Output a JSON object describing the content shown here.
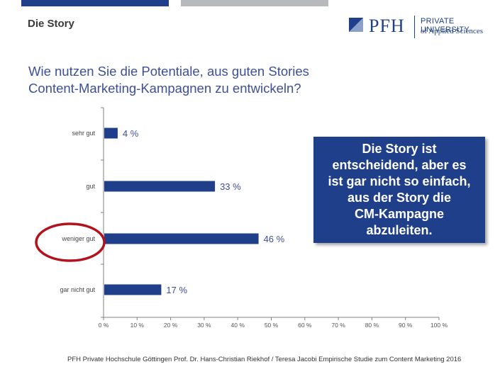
{
  "header": {
    "section_title": "Die Story",
    "logo": {
      "name": "PFH",
      "line1": "PRIVATE UNIVERSITY",
      "line2": "of Applied Sciences"
    }
  },
  "question": {
    "line1": "Wie nutzen Sie die Potentiale, aus guten Stories",
    "line2": "Content-Marketing-Kampagnen zu entwickeln?"
  },
  "chart_data": {
    "type": "bar",
    "orientation": "horizontal",
    "categories": [
      "sehr gut",
      "gut",
      "weniger gut",
      "gar nicht gut"
    ],
    "values": [
      4,
      33,
      46,
      17
    ],
    "value_labels": [
      "4 %",
      "33 %",
      "46 %",
      "17 %"
    ],
    "xlim": [
      0,
      100
    ],
    "xticks": [
      "0 %",
      "10 %",
      "20 %",
      "30 %",
      "40 %",
      "50 %",
      "60 %",
      "70 %",
      "80 %",
      "90 %",
      "100 %"
    ],
    "grid": false,
    "highlighted_category": "weniger gut",
    "colors": {
      "bar": "#1f3f8a",
      "label": "#3d4e9a",
      "highlight": "#b3121c"
    }
  },
  "callout": {
    "lines": [
      "Die Story ist",
      "entscheidend, aber es",
      "ist gar nicht so einfach,",
      "aus der Story die",
      "CM-Kampagne",
      "abzuleiten."
    ]
  },
  "footer": {
    "text": "PFH Private Hochschule Göttingen Prof. Dr. Hans-Christian Riekhof / Teresa Jacobi Empirische Studie zum Content Marketing  2016"
  }
}
